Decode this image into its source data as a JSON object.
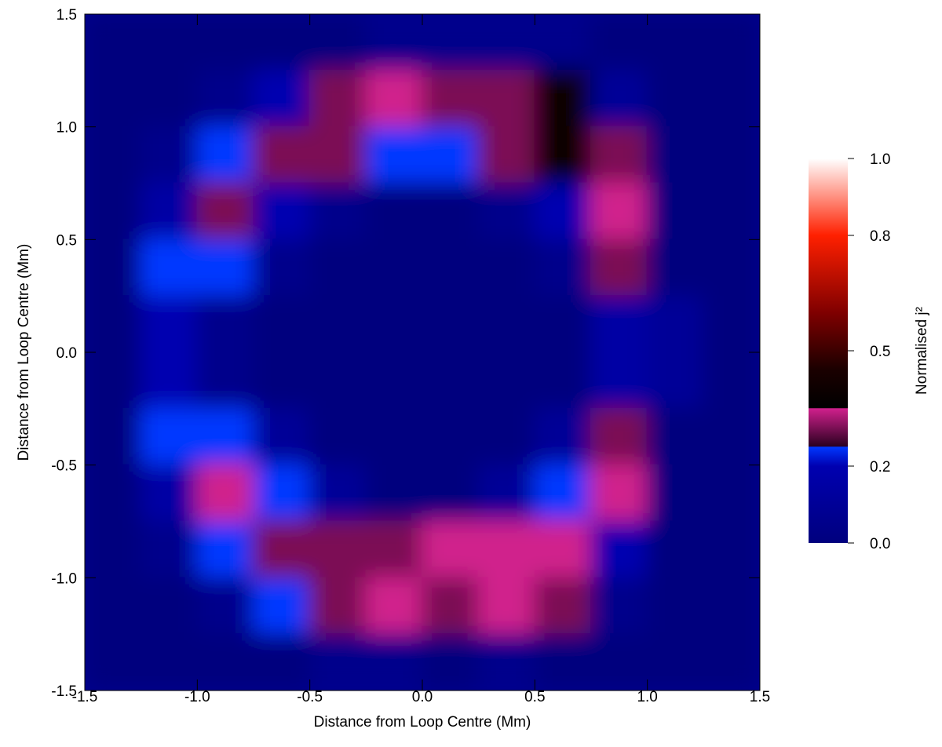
{
  "chart_data": {
    "type": "heatmap",
    "xlabel": "Distance from Loop Centre (Mm)",
    "ylabel": "Distance from Loop Centre (Mm)",
    "xlim": [
      -1.5,
      1.5
    ],
    "ylim": [
      -1.5,
      1.5
    ],
    "xticks": [
      {
        "value": -1.5,
        "label": "-1.5"
      },
      {
        "value": -1,
        "label": "-1.0"
      },
      -0.5,
      {
        "value": 0,
        "label": "0.0"
      },
      0.5,
      {
        "value": 1,
        "label": "1.0"
      },
      1.5
    ],
    "yticks": [
      {
        "value": -1.5,
        "label": "-1.5"
      },
      {
        "value": -1,
        "label": "-1.0"
      },
      -0.5,
      {
        "value": 0,
        "label": "0.0"
      },
      0.5,
      {
        "value": 1,
        "label": "1.0"
      },
      1.5
    ],
    "x": [
      -1.375,
      -1.125,
      -0.875,
      -0.625,
      -0.375,
      -0.125,
      0.125,
      0.375,
      0.625,
      0.875,
      1.125,
      1.375
    ],
    "y": [
      1.375,
      1.125,
      0.875,
      0.625,
      0.375,
      0.125,
      -0.125,
      -0.375,
      -0.625,
      -0.875,
      -1.125,
      -1.375
    ],
    "z": [
      [
        0,
        0,
        0,
        0,
        0,
        0.05,
        0.05,
        0.05,
        0.05,
        0,
        0,
        0
      ],
      [
        0,
        0,
        0.05,
        0.2,
        0.3,
        0.35,
        0.3,
        0.3,
        0.4,
        0.1,
        0,
        0
      ],
      [
        0,
        0.05,
        0.25,
        0.3,
        0.3,
        0.25,
        0.25,
        0.3,
        0.4,
        0.3,
        0,
        0
      ],
      [
        0,
        0.15,
        0.3,
        0.2,
        0.05,
        0,
        0,
        0.05,
        0.2,
        0.35,
        0,
        0
      ],
      [
        0,
        0.25,
        0.25,
        0.05,
        0,
        0,
        0,
        0,
        0.05,
        0.3,
        0,
        0
      ],
      [
        0,
        0.2,
        0.05,
        0,
        0,
        0,
        0,
        0,
        0,
        0.15,
        0.1,
        0
      ],
      [
        0,
        0.2,
        0.05,
        0,
        0,
        0,
        0,
        0,
        0,
        0.15,
        0.1,
        0
      ],
      [
        0,
        0.25,
        0.25,
        0.1,
        0,
        0,
        0,
        0,
        0.1,
        0.3,
        0,
        0
      ],
      [
        0,
        0.15,
        0.35,
        0.25,
        0.1,
        0,
        0,
        0.1,
        0.25,
        0.35,
        0,
        0
      ],
      [
        0,
        0.05,
        0.25,
        0.3,
        0.3,
        0.3,
        0.35,
        0.35,
        0.35,
        0.2,
        0,
        0
      ],
      [
        0,
        0,
        0.05,
        0.25,
        0.3,
        0.35,
        0.3,
        0.35,
        0.3,
        0.05,
        0,
        0
      ],
      [
        0,
        0,
        0,
        0,
        0.05,
        0.05,
        0,
        0.05,
        0,
        0,
        0,
        0
      ]
    ],
    "colorbar_label": "Normalised j²",
    "colorbar_lim": [
      0,
      1
    ],
    "colorbar_ticks": [
      {
        "value": 0,
        "label": "0.0"
      },
      0.2,
      0.5,
      0.8,
      {
        "value": 1,
        "label": "1.0"
      }
    ],
    "colormap": [
      [
        0,
        "#00007e"
      ],
      [
        0.2,
        "#0000b0"
      ],
      [
        0.25,
        "#0038ff"
      ],
      [
        0.251,
        "#2a0020"
      ],
      [
        0.35,
        "#d0208c"
      ],
      [
        0.351,
        "#000000"
      ],
      [
        0.45,
        "#1a0000"
      ],
      [
        0.6,
        "#800000"
      ],
      [
        0.8,
        "#ff2000"
      ],
      [
        1,
        "#ffffff"
      ]
    ],
    "background": "#000090"
  }
}
